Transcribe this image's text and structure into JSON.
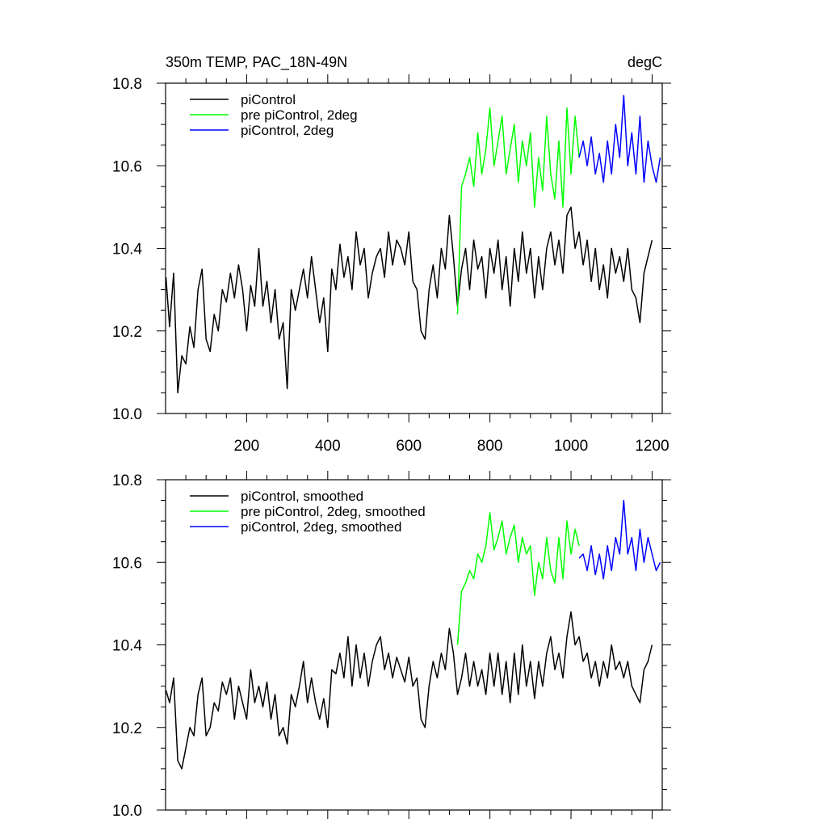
{
  "chart_data": [
    {
      "type": "line",
      "title_left": "350m TEMP, PAC_18N-49N",
      "title_right": "degC",
      "xlim": [
        0,
        1225
      ],
      "ylim": [
        10.0,
        10.8
      ],
      "xticks": [
        200,
        400,
        600,
        800,
        1000,
        1200
      ],
      "xtick_labels": [
        "200",
        "400",
        "600",
        "800",
        "1000",
        "1200"
      ],
      "yticks": [
        10.0,
        10.2,
        10.4,
        10.6,
        10.8
      ],
      "ytick_labels": [
        "10.0",
        "10.2",
        "10.4",
        "10.6",
        "10.8"
      ],
      "legend_position": "top-left",
      "series": [
        {
          "name": "piControl",
          "color": "#000000",
          "x": [
            1,
            10,
            20,
            30,
            40,
            50,
            60,
            70,
            80,
            90,
            100,
            110,
            120,
            130,
            140,
            150,
            160,
            170,
            180,
            190,
            200,
            210,
            220,
            230,
            240,
            250,
            260,
            270,
            280,
            290,
            300,
            310,
            320,
            330,
            340,
            350,
            360,
            370,
            380,
            390,
            400,
            410,
            420,
            430,
            440,
            450,
            460,
            470,
            480,
            490,
            500,
            510,
            520,
            530,
            540,
            550,
            560,
            570,
            580,
            590,
            600,
            610,
            620,
            630,
            640,
            650,
            660,
            670,
            680,
            690,
            700,
            710,
            720,
            730,
            740,
            750,
            760,
            770,
            780,
            790,
            800,
            810,
            820,
            830,
            840,
            850,
            860,
            870,
            880,
            890,
            900,
            910,
            920,
            930,
            940,
            950,
            960,
            970,
            980,
            990,
            1000,
            1010,
            1020,
            1030,
            1040,
            1050,
            1060,
            1070,
            1080,
            1090,
            1100,
            1110,
            1120,
            1130,
            1140,
            1150,
            1160,
            1170,
            1180,
            1190,
            1200
          ],
          "y": [
            10.33,
            10.21,
            10.34,
            10.05,
            10.14,
            10.12,
            10.21,
            10.16,
            10.3,
            10.35,
            10.18,
            10.15,
            10.24,
            10.2,
            10.3,
            10.27,
            10.34,
            10.28,
            10.36,
            10.3,
            10.2,
            10.31,
            10.26,
            10.4,
            10.26,
            10.32,
            10.22,
            10.3,
            10.18,
            10.22,
            10.06,
            10.3,
            10.25,
            10.3,
            10.35,
            10.28,
            10.38,
            10.3,
            10.22,
            10.28,
            10.15,
            10.35,
            10.3,
            10.41,
            10.33,
            10.38,
            10.3,
            10.44,
            10.36,
            10.4,
            10.28,
            10.34,
            10.38,
            10.4,
            10.33,
            10.44,
            10.36,
            10.42,
            10.4,
            10.36,
            10.44,
            10.32,
            10.3,
            10.2,
            10.18,
            10.3,
            10.36,
            10.28,
            10.4,
            10.35,
            10.48,
            10.38,
            10.26,
            10.35,
            10.4,
            10.3,
            10.42,
            10.35,
            10.38,
            10.28,
            10.4,
            10.34,
            10.42,
            10.3,
            10.38,
            10.26,
            10.4,
            10.32,
            10.44,
            10.34,
            10.4,
            10.28,
            10.38,
            10.3,
            10.4,
            10.44,
            10.36,
            10.42,
            10.34,
            10.48,
            10.5,
            10.4,
            10.44,
            10.36,
            10.42,
            10.32,
            10.4,
            10.3,
            10.36,
            10.28,
            10.4,
            10.34,
            10.38,
            10.32,
            10.4,
            10.3,
            10.28,
            10.22,
            10.34,
            10.38,
            10.42
          ]
        },
        {
          "name": "pre piControl, 2deg",
          "color": "#00ff00",
          "x": [
            720,
            730,
            740,
            750,
            760,
            770,
            780,
            790,
            800,
            810,
            820,
            830,
            840,
            850,
            860,
            870,
            880,
            890,
            900,
            910,
            920,
            930,
            940,
            950,
            960,
            970,
            980,
            990,
            1000,
            1010,
            1020
          ],
          "y": [
            10.24,
            10.55,
            10.58,
            10.62,
            10.55,
            10.68,
            10.58,
            10.64,
            10.74,
            10.6,
            10.66,
            10.72,
            10.58,
            10.64,
            10.7,
            10.56,
            10.66,
            10.6,
            10.68,
            10.5,
            10.62,
            10.54,
            10.72,
            10.58,
            10.52,
            10.66,
            10.5,
            10.74,
            10.58,
            10.72,
            10.62
          ]
        },
        {
          "name": "piControl, 2deg",
          "color": "#0000ff",
          "x": [
            1020,
            1030,
            1040,
            1050,
            1060,
            1070,
            1080,
            1090,
            1100,
            1110,
            1120,
            1130,
            1140,
            1150,
            1160,
            1170,
            1180,
            1190,
            1200,
            1210,
            1220
          ],
          "y": [
            10.62,
            10.66,
            10.6,
            10.67,
            10.58,
            10.63,
            10.56,
            10.66,
            10.58,
            10.7,
            10.62,
            10.77,
            10.6,
            10.68,
            10.58,
            10.72,
            10.56,
            10.66,
            10.6,
            10.56,
            10.62
          ]
        }
      ]
    },
    {
      "type": "line",
      "xlim": [
        0,
        1225
      ],
      "ylim": [
        10.0,
        10.8
      ],
      "yticks": [
        10.0,
        10.2,
        10.4,
        10.6,
        10.8
      ],
      "ytick_labels": [
        "10.0",
        "10.2",
        "10.4",
        "10.6",
        "10.8"
      ],
      "legend_position": "top-left",
      "series": [
        {
          "name": "piControl, smoothed",
          "color": "#000000",
          "x": [
            1,
            10,
            20,
            30,
            40,
            50,
            60,
            70,
            80,
            90,
            100,
            110,
            120,
            130,
            140,
            150,
            160,
            170,
            180,
            190,
            200,
            210,
            220,
            230,
            240,
            250,
            260,
            270,
            280,
            290,
            300,
            310,
            320,
            330,
            340,
            350,
            360,
            370,
            380,
            390,
            400,
            410,
            420,
            430,
            440,
            450,
            460,
            470,
            480,
            490,
            500,
            510,
            520,
            530,
            540,
            550,
            560,
            570,
            580,
            590,
            600,
            610,
            620,
            630,
            640,
            650,
            660,
            670,
            680,
            690,
            700,
            710,
            720,
            730,
            740,
            750,
            760,
            770,
            780,
            790,
            800,
            810,
            820,
            830,
            840,
            850,
            860,
            870,
            880,
            890,
            900,
            910,
            920,
            930,
            940,
            950,
            960,
            970,
            980,
            990,
            1000,
            1010,
            1020,
            1030,
            1040,
            1050,
            1060,
            1070,
            1080,
            1090,
            1100,
            1110,
            1120,
            1130,
            1140,
            1150,
            1160,
            1170,
            1180,
            1190,
            1200
          ],
          "y": [
            10.29,
            10.26,
            10.32,
            10.12,
            10.1,
            10.15,
            10.2,
            10.18,
            10.28,
            10.32,
            10.18,
            10.2,
            10.26,
            10.24,
            10.31,
            10.28,
            10.32,
            10.22,
            10.3,
            10.26,
            10.22,
            10.34,
            10.26,
            10.3,
            10.25,
            10.31,
            10.22,
            10.28,
            10.18,
            10.2,
            10.16,
            10.28,
            10.25,
            10.3,
            10.36,
            10.26,
            10.32,
            10.26,
            10.22,
            10.27,
            10.2,
            10.34,
            10.33,
            10.38,
            10.32,
            10.42,
            10.3,
            10.4,
            10.32,
            10.38,
            10.3,
            10.36,
            10.4,
            10.42,
            10.34,
            10.38,
            10.32,
            10.37,
            10.34,
            10.31,
            10.37,
            10.3,
            10.32,
            10.22,
            10.2,
            10.3,
            10.36,
            10.32,
            10.38,
            10.34,
            10.44,
            10.38,
            10.28,
            10.32,
            10.38,
            10.3,
            10.36,
            10.3,
            10.34,
            10.28,
            10.38,
            10.3,
            10.38,
            10.28,
            10.36,
            10.26,
            10.38,
            10.28,
            10.4,
            10.3,
            10.36,
            10.27,
            10.36,
            10.3,
            10.38,
            10.42,
            10.34,
            10.38,
            10.32,
            10.42,
            10.48,
            10.4,
            10.42,
            10.36,
            10.38,
            10.32,
            10.36,
            10.3,
            10.36,
            10.32,
            10.4,
            10.34,
            10.36,
            10.32,
            10.36,
            10.3,
            10.28,
            10.26,
            10.34,
            10.36,
            10.4
          ]
        },
        {
          "name": "pre piControl, 2deg, smoothed",
          "color": "#00ff00",
          "x": [
            720,
            730,
            740,
            750,
            760,
            770,
            780,
            790,
            800,
            810,
            820,
            830,
            840,
            850,
            860,
            870,
            880,
            890,
            900,
            910,
            920,
            930,
            940,
            950,
            960,
            970,
            980,
            990,
            1000,
            1010,
            1020
          ],
          "y": [
            10.4,
            10.53,
            10.55,
            10.58,
            10.56,
            10.62,
            10.6,
            10.64,
            10.72,
            10.63,
            10.66,
            10.7,
            10.62,
            10.66,
            10.69,
            10.6,
            10.66,
            10.62,
            10.64,
            10.52,
            10.6,
            10.56,
            10.66,
            10.58,
            10.55,
            10.66,
            10.56,
            10.7,
            10.62,
            10.68,
            10.64
          ]
        },
        {
          "name": "piControl, 2deg, smoothed",
          "color": "#0000ff",
          "x": [
            1020,
            1030,
            1040,
            1050,
            1060,
            1070,
            1080,
            1090,
            1100,
            1110,
            1120,
            1130,
            1140,
            1150,
            1160,
            1170,
            1180,
            1190,
            1200,
            1210,
            1220
          ],
          "y": [
            10.61,
            10.62,
            10.58,
            10.64,
            10.57,
            10.62,
            10.56,
            10.64,
            10.58,
            10.66,
            10.62,
            10.75,
            10.62,
            10.66,
            10.58,
            10.68,
            10.6,
            10.66,
            10.62,
            10.58,
            10.6
          ]
        }
      ]
    }
  ]
}
